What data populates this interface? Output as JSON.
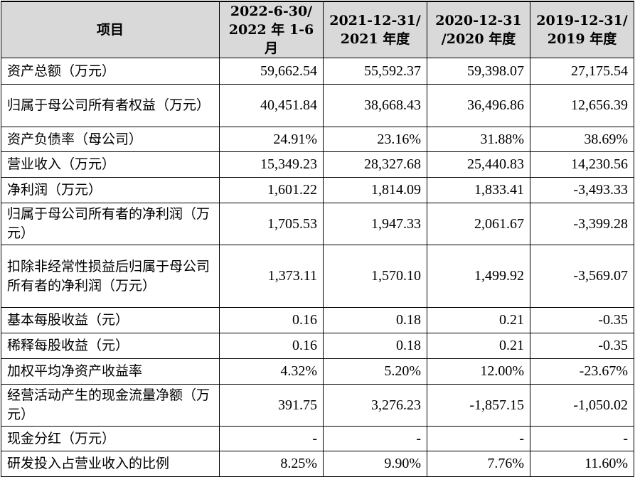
{
  "table": {
    "headers": [
      "项目",
      "2022-6-30/\n2022 年 1-6 月",
      "2021-12-31/\n2021 年度",
      "2020-12-31\n/2020 年度",
      "2019-12-31/\n2019 年度"
    ],
    "rows": [
      {
        "label": "资产总额（万元）",
        "values": [
          "59,662.54",
          "55,592.37",
          "59,398.07",
          "27,175.54"
        ],
        "h": 37
      },
      {
        "label": "归属于母公司所有者权益（万元）",
        "values": [
          "40,451.84",
          "38,668.43",
          "36,496.86",
          "12,656.39"
        ],
        "h": 60
      },
      {
        "label": "资产负债率（母公司）",
        "values": [
          "24.91%",
          "23.16%",
          "31.88%",
          "38.69%"
        ],
        "h": 35
      },
      {
        "label": "营业收入（万元）",
        "values": [
          "15,349.23",
          "28,327.68",
          "25,440.83",
          "14,230.56"
        ],
        "h": 36
      },
      {
        "label": "净利润（万元）",
        "values": [
          "1,601.22",
          "1,814.09",
          "1,833.41",
          "-3,493.33"
        ],
        "h": 36
      },
      {
        "label": "归属于母公司所有者的净利润（万元）",
        "values": [
          "1,705.53",
          "1,947.33",
          "2,061.67",
          "-3,399.28"
        ],
        "h": 59
      },
      {
        "label": "扣除非经常性损益后归属于母公司所有者的净利润（万元）",
        "values": [
          "1,373.11",
          "1,570.10",
          "1,499.92",
          "-3,569.07"
        ],
        "h": 88
      },
      {
        "label": "基本每股收益（元）",
        "values": [
          "0.16",
          "0.18",
          "0.21",
          "-0.35"
        ],
        "h": 36
      },
      {
        "label": "稀释每股收益（元）",
        "values": [
          "0.16",
          "0.18",
          "0.21",
          "-0.35"
        ],
        "h": 36
      },
      {
        "label": "加权平均净资产收益率",
        "values": [
          "4.32%",
          "5.20%",
          "12.00%",
          "-23.67%"
        ],
        "h": 36
      },
      {
        "label": "经营活动产生的现金流量净额（万元）",
        "values": [
          "391.75",
          "3,276.23",
          "-1,857.15",
          "-1,050.02"
        ],
        "h": 59
      },
      {
        "label": "现金分红（万元）",
        "values": [
          "-",
          "-",
          "-",
          "-"
        ],
        "h": 35
      },
      {
        "label": "研发投入占营业收入的比例",
        "values": [
          "8.25%",
          "9.90%",
          "7.76%",
          "11.60%"
        ],
        "h": 36
      }
    ]
  }
}
